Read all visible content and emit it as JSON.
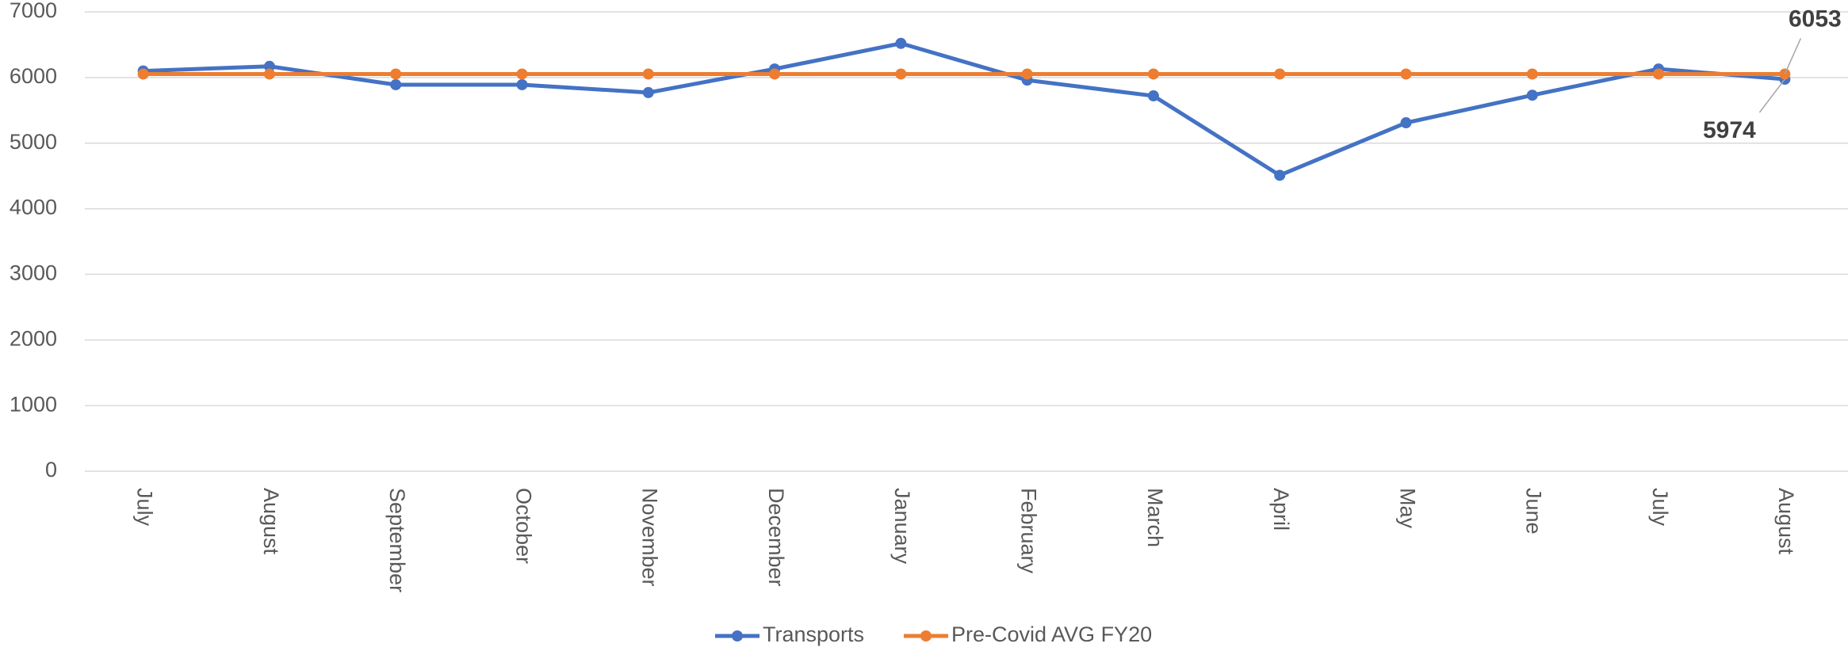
{
  "chart_data": {
    "type": "line",
    "categories": [
      "July",
      "August",
      "September",
      "October",
      "November",
      "December",
      "January",
      "February",
      "March",
      "April",
      "May",
      "June",
      "July",
      "August"
    ],
    "series": [
      {
        "name": "Transports",
        "color": "#4472c4",
        "values": [
          6100,
          6170,
          5890,
          5890,
          5770,
          6130,
          6520,
          5960,
          5720,
          4510,
          5310,
          5730,
          6130,
          5974
        ]
      },
      {
        "name": "Pre-Covid AVG FY20",
        "color": "#ed7d31",
        "values": [
          6053,
          6053,
          6053,
          6053,
          6053,
          6053,
          6053,
          6053,
          6053,
          6053,
          6053,
          6053,
          6053,
          6053
        ]
      }
    ],
    "ylim": [
      0,
      7000
    ],
    "yticks": [
      0,
      1000,
      2000,
      3000,
      4000,
      5000,
      6000,
      7000
    ],
    "grid": true,
    "legend": "bottom"
  }
}
